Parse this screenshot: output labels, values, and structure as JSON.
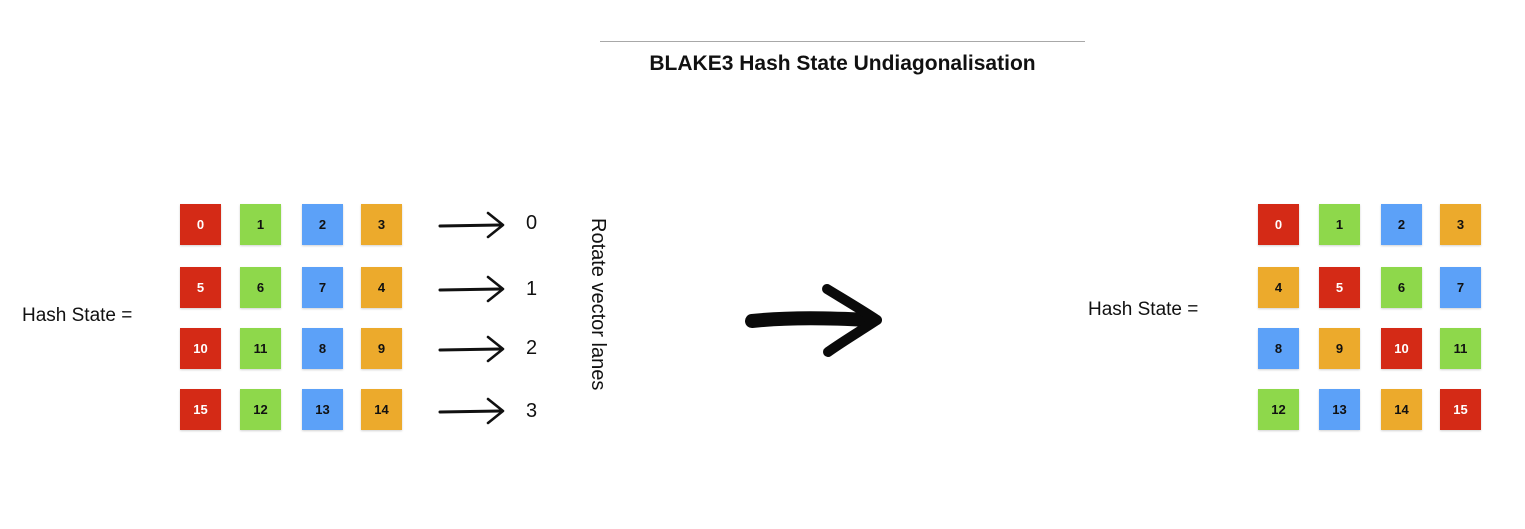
{
  "title": "BLAKE3 Hash State Undiagonalisation",
  "left_label": "Hash State =",
  "right_label": "Hash State =",
  "rotate_label": "Rotate vector lanes",
  "lane_numbers": [
    "0",
    "1",
    "2",
    "3"
  ],
  "colors": {
    "red": "#d42a16",
    "green": "#8ed84b",
    "blue": "#5ca1f8",
    "orange": "#ecaa2c"
  },
  "left_grid": [
    [
      {
        "v": "0",
        "c": "red"
      },
      {
        "v": "1",
        "c": "green"
      },
      {
        "v": "2",
        "c": "blue"
      },
      {
        "v": "3",
        "c": "orange"
      }
    ],
    [
      {
        "v": "5",
        "c": "red"
      },
      {
        "v": "6",
        "c": "green"
      },
      {
        "v": "7",
        "c": "blue"
      },
      {
        "v": "4",
        "c": "orange"
      }
    ],
    [
      {
        "v": "10",
        "c": "red"
      },
      {
        "v": "11",
        "c": "green"
      },
      {
        "v": "8",
        "c": "blue"
      },
      {
        "v": "9",
        "c": "orange"
      }
    ],
    [
      {
        "v": "15",
        "c": "red"
      },
      {
        "v": "12",
        "c": "green"
      },
      {
        "v": "13",
        "c": "blue"
      },
      {
        "v": "14",
        "c": "orange"
      }
    ]
  ],
  "right_grid": [
    [
      {
        "v": "0",
        "c": "red"
      },
      {
        "v": "1",
        "c": "green"
      },
      {
        "v": "2",
        "c": "blue"
      },
      {
        "v": "3",
        "c": "orange"
      }
    ],
    [
      {
        "v": "4",
        "c": "orange"
      },
      {
        "v": "5",
        "c": "red"
      },
      {
        "v": "6",
        "c": "green"
      },
      {
        "v": "7",
        "c": "blue"
      }
    ],
    [
      {
        "v": "8",
        "c": "blue"
      },
      {
        "v": "9",
        "c": "orange"
      },
      {
        "v": "10",
        "c": "red"
      },
      {
        "v": "11",
        "c": "green"
      }
    ],
    [
      {
        "v": "12",
        "c": "green"
      },
      {
        "v": "13",
        "c": "blue"
      },
      {
        "v": "14",
        "c": "orange"
      },
      {
        "v": "15",
        "c": "red"
      }
    ]
  ]
}
